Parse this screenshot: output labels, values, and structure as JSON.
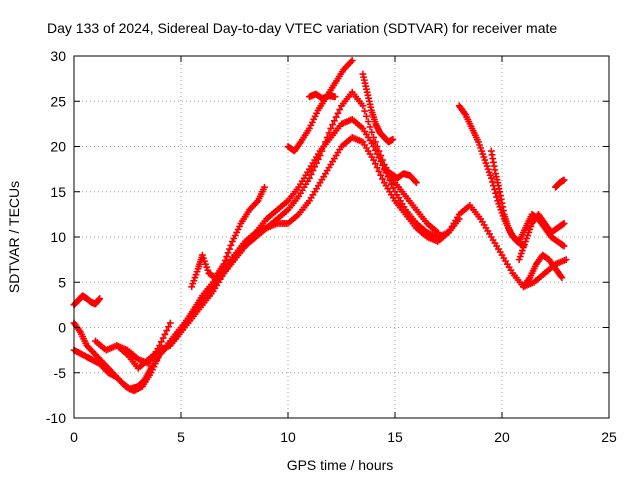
{
  "chart_data": {
    "type": "scatter",
    "title": "Day 133 of 2024, Sidereal Day-to-day VTEC variation (SDTVAR) for receiver mate",
    "xlabel": "GPS time / hours",
    "ylabel": "SDTVAR / TECUs",
    "xlim": [
      0,
      25
    ],
    "ylim": [
      -10,
      30
    ],
    "xticks": [
      "0",
      "5",
      "10",
      "15",
      "20",
      "25"
    ],
    "yticks": [
      "-10",
      "-5",
      "0",
      "5",
      "10",
      "15",
      "20",
      "25",
      "30"
    ],
    "grid": true,
    "marker": "+",
    "color": "#ff0000",
    "series": [
      {
        "x": [
          0.0,
          0.2,
          0.4,
          0.6,
          0.8,
          1.0,
          1.2
        ],
        "y": [
          2.5,
          3.0,
          3.5,
          3.2,
          2.8,
          2.6,
          3.2
        ]
      },
      {
        "x": [
          0.0,
          0.3,
          0.6,
          1.0,
          1.4,
          1.8,
          2.2,
          2.6,
          3.0,
          3.3,
          3.6,
          4.0,
          4.4,
          4.8,
          5.2,
          5.6,
          6.0,
          6.5,
          7.0,
          7.5,
          8.0,
          8.5,
          9.0,
          9.5,
          10.0,
          10.5,
          11.0,
          11.5,
          12.0,
          12.5,
          13.0,
          13.5,
          14.0,
          14.5,
          15.0,
          15.5,
          16.0,
          16.5,
          17.0,
          17.5,
          18.0,
          18.5,
          19.0,
          19.5,
          20.0,
          20.5,
          21.0,
          21.5,
          22.0,
          22.5,
          23.0
        ],
        "y": [
          0.5,
          -0.5,
          -2.0,
          -3.0,
          -4.0,
          -5.0,
          -6.0,
          -6.8,
          -6.5,
          -5.8,
          -4.5,
          -3.0,
          -2.0,
          -1.0,
          0.5,
          2.0,
          3.5,
          5.0,
          6.5,
          8.0,
          9.5,
          10.5,
          11.0,
          11.5,
          11.5,
          12.5,
          14.0,
          16.0,
          18.0,
          20.0,
          21.0,
          20.5,
          18.5,
          16.0,
          14.0,
          12.5,
          11.0,
          10.0,
          9.5,
          10.5,
          12.5,
          13.5,
          12.0,
          10.0,
          8.0,
          6.0,
          4.5,
          5.0,
          6.0,
          7.0,
          7.5
        ]
      },
      {
        "x": [
          0.0,
          0.4,
          0.8,
          1.2,
          1.6,
          2.0,
          2.4,
          2.8,
          3.2,
          3.6,
          4.0,
          4.5,
          5.0,
          5.5,
          6.0,
          6.5,
          7.0,
          7.5,
          8.0,
          8.5,
          9.0,
          9.5,
          10.0,
          10.5,
          11.0,
          11.5,
          12.0,
          12.5,
          13.0,
          13.5,
          14.0,
          14.5,
          15.0,
          15.5,
          16.0,
          16.5,
          17.0,
          17.5,
          18.0
        ],
        "y": [
          -2.5,
          -3.0,
          -3.5,
          -4.0,
          -5.0,
          -5.5,
          -6.5,
          -7.0,
          -6.5,
          -5.0,
          -3.0,
          -1.5,
          0.0,
          1.5,
          3.0,
          4.5,
          6.0,
          7.5,
          9.0,
          10.5,
          12.0,
          13.0,
          14.0,
          15.5,
          17.5,
          19.5,
          21.0,
          22.5,
          23.0,
          22.0,
          20.0,
          17.5,
          15.0,
          13.0,
          11.5,
          10.5,
          10.0,
          10.5,
          12.0
        ]
      },
      {
        "x": [
          1.0,
          1.5,
          2.0,
          2.5,
          3.0,
          3.5,
          4.0,
          4.5,
          5.0,
          5.5,
          6.0,
          6.5,
          7.0,
          7.5,
          8.0,
          8.5,
          9.0,
          9.5,
          10.0,
          10.5,
          11.0,
          11.5,
          12.0,
          12.5,
          13.0,
          13.5,
          14.0,
          14.5,
          15.0,
          15.5,
          16.0,
          16.5,
          17.0
        ],
        "y": [
          -1.5,
          -2.5,
          -2.0,
          -3.0,
          -4.5,
          -3.5,
          -2.5,
          -2.0,
          -0.5,
          1.0,
          2.5,
          4.0,
          6.0,
          7.5,
          9.0,
          10.0,
          11.0,
          12.0,
          13.0,
          14.5,
          16.5,
          19.0,
          22.0,
          24.5,
          26.0,
          24.5,
          21.0,
          18.0,
          16.0,
          14.5,
          13.0,
          11.5,
          10.5
        ]
      },
      {
        "x": [
          2.0,
          2.5,
          3.0,
          3.5,
          4.0,
          4.5
        ],
        "y": [
          -2.0,
          -2.5,
          -3.5,
          -4.0,
          -2.0,
          0.5
        ]
      },
      {
        "x": [
          5.5,
          5.8,
          6.0,
          6.3,
          6.6,
          7.0,
          7.4,
          7.8,
          8.2,
          8.6,
          8.9
        ],
        "y": [
          4.5,
          6.5,
          8.0,
          6.0,
          5.5,
          7.0,
          9.5,
          11.5,
          13.0,
          14.0,
          15.5
        ]
      },
      {
        "x": [
          10.0,
          10.3,
          10.6,
          11.0,
          11.4,
          11.8,
          12.2,
          12.6,
          13.0
        ],
        "y": [
          20.0,
          19.5,
          20.5,
          22.0,
          24.0,
          25.5,
          27.0,
          28.5,
          29.5
        ]
      },
      {
        "x": [
          11.0,
          11.3,
          11.6,
          11.9,
          12.2
        ],
        "y": [
          25.5,
          25.8,
          25.3,
          25.6,
          25.5
        ]
      },
      {
        "x": [
          13.5,
          13.7,
          13.9,
          14.1,
          14.3,
          14.5,
          14.7,
          14.9
        ],
        "y": [
          28.0,
          26.0,
          24.0,
          22.5,
          21.5,
          21.0,
          20.5,
          20.8
        ]
      },
      {
        "x": [
          14.5,
          14.8,
          15.1,
          15.4,
          15.7,
          16.0
        ],
        "y": [
          17.5,
          17.0,
          16.5,
          17.0,
          16.8,
          16.0
        ]
      },
      {
        "x": [
          18.0,
          18.3,
          18.6,
          18.9,
          19.2,
          19.5,
          19.8,
          20.1,
          20.4,
          20.7,
          21.0
        ],
        "y": [
          24.5,
          23.5,
          22.0,
          20.5,
          18.5,
          16.5,
          14.0,
          12.0,
          10.5,
          9.5,
          9.0
        ]
      },
      {
        "x": [
          19.5,
          19.7,
          19.9,
          20.1,
          20.3,
          20.5,
          20.8,
          21.1,
          21.4,
          21.7,
          22.0,
          22.3,
          22.6,
          22.9
        ],
        "y": [
          19.5,
          17.0,
          15.0,
          12.5,
          11.0,
          10.0,
          9.5,
          11.0,
          12.5,
          12.0,
          11.0,
          10.0,
          9.5,
          9.0
        ]
      },
      {
        "x": [
          20.8,
          21.1,
          21.4,
          21.7,
          22.0,
          22.3,
          22.6,
          22.9
        ],
        "y": [
          7.5,
          9.5,
          11.5,
          12.5,
          11.5,
          10.5,
          11.0,
          11.5
        ]
      },
      {
        "x": [
          21.0,
          21.3,
          21.6,
          21.9,
          22.2,
          22.5,
          22.8
        ],
        "y": [
          4.5,
          5.5,
          7.0,
          8.0,
          7.5,
          6.5,
          5.5
        ]
      },
      {
        "x": [
          22.5,
          22.7,
          22.9
        ],
        "y": [
          15.5,
          16.0,
          16.3
        ]
      }
    ]
  }
}
